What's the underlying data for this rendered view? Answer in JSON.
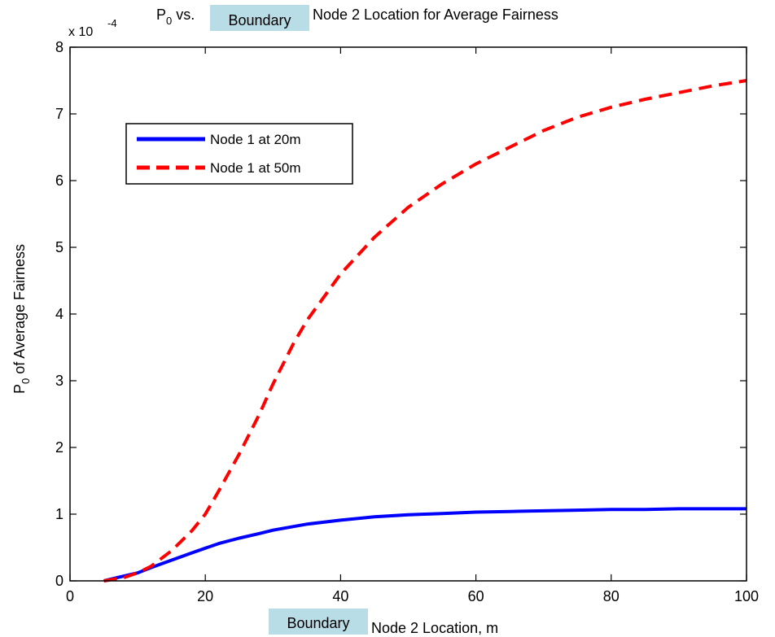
{
  "chart_data": {
    "type": "line",
    "title": {
      "prefix": "P",
      "prefix_sub": "0",
      "prefix_tail": " vs.",
      "suffix": " Node 2 Location for Average Fairness"
    },
    "xlabel": {
      "suffix": "Node 2 Location, m"
    },
    "ylabel": {
      "main": "P",
      "sub": "0",
      "tail": " of Average Fairness"
    },
    "overlay_label": "Boundary",
    "y_exponent": {
      "base": "x 10",
      "power": "-4"
    },
    "xlim": [
      0,
      100
    ],
    "ylim": [
      0,
      8
    ],
    "xticks": [
      0,
      20,
      40,
      60,
      80,
      100
    ],
    "yticks": [
      0,
      1,
      2,
      3,
      4,
      5,
      6,
      7,
      8
    ],
    "legend_position": "upper-left",
    "grid": false,
    "series": [
      {
        "name": "Node 1 at 20m",
        "color": "#0000ff",
        "style": "solid",
        "x": [
          5,
          7,
          10,
          12,
          15,
          18,
          20,
          22,
          25,
          28,
          30,
          35,
          40,
          45,
          50,
          55,
          60,
          65,
          70,
          75,
          80,
          85,
          90,
          95,
          100
        ],
        "y": [
          0.0,
          0.05,
          0.12,
          0.2,
          0.31,
          0.42,
          0.49,
          0.56,
          0.64,
          0.71,
          0.76,
          0.85,
          0.91,
          0.96,
          0.99,
          1.01,
          1.03,
          1.04,
          1.05,
          1.06,
          1.07,
          1.07,
          1.08,
          1.08,
          1.08
        ]
      },
      {
        "name": "Node 1 at 50m",
        "color": "#ff0000",
        "style": "dashed",
        "x": [
          5,
          8,
          10,
          12,
          15,
          18,
          20,
          22,
          25,
          28,
          30,
          33,
          35,
          40,
          45,
          50,
          55,
          60,
          65,
          70,
          75,
          80,
          85,
          90,
          95,
          100
        ],
        "y": [
          0.0,
          0.05,
          0.12,
          0.22,
          0.45,
          0.75,
          1.0,
          1.35,
          1.9,
          2.5,
          2.95,
          3.55,
          3.9,
          4.6,
          5.15,
          5.6,
          5.95,
          6.25,
          6.5,
          6.75,
          6.95,
          7.1,
          7.22,
          7.32,
          7.42,
          7.5
        ]
      }
    ]
  }
}
